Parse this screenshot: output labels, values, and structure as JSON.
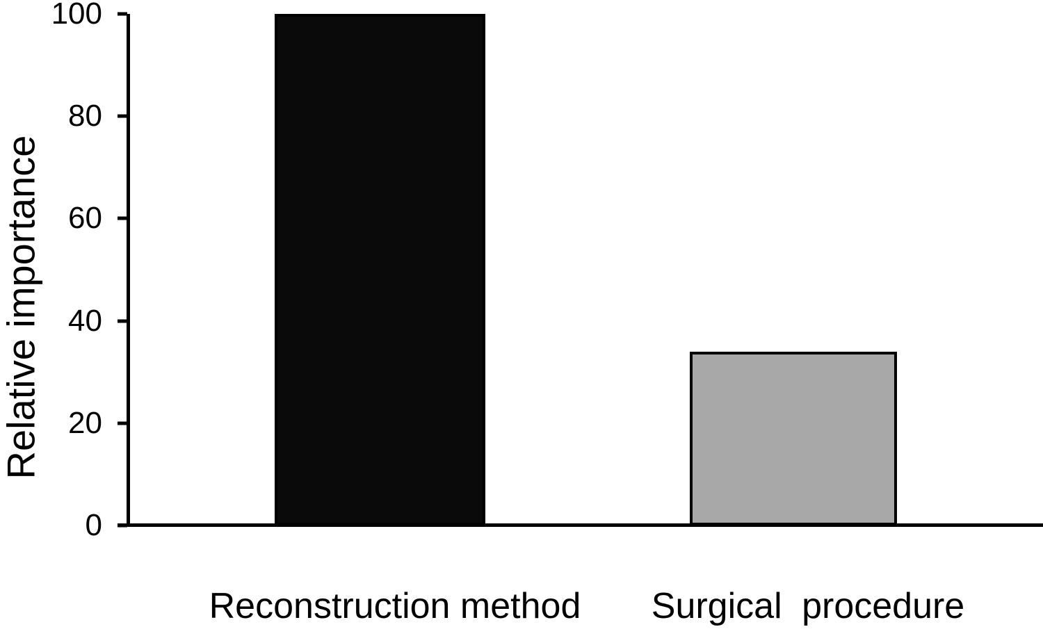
{
  "chart_data": {
    "type": "bar",
    "categories": [
      "Reconstruction method",
      "Surgical procedure"
    ],
    "values": [
      100,
      34
    ],
    "ylabel": "Relative importance",
    "ylim": [
      0,
      100
    ],
    "yticks": [
      0,
      20,
      40,
      60,
      80,
      100
    ],
    "bar_colors": [
      "#0a0a0a",
      "#a8a8a8"
    ],
    "bar_border_color": "#000000",
    "grid": false,
    "legend_position": "none",
    "background_color": "#ffffff"
  }
}
